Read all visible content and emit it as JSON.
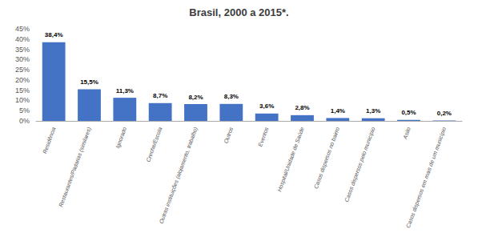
{
  "chart_data": {
    "type": "bar",
    "title": "Brasil, 2000 a 2015*.",
    "categories": [
      "Residência",
      "Restaurantes/Padarias (similares)",
      "Ignorado",
      "Creche/Escola",
      "Outras instituições (alojamento, trabalho)",
      "Outros",
      "Eventos",
      "Hospital/Unidade de Saúde",
      "Casos dispersos no bairro",
      "Casos dispersos pelo município",
      "Asilo",
      "Casos dispersos em mais de um município"
    ],
    "values": [
      38.4,
      15.5,
      11.3,
      8.7,
      8.2,
      8.3,
      3.6,
      2.8,
      1.4,
      1.3,
      0.5,
      0.2
    ],
    "value_labels": [
      "38,4%",
      "15,5%",
      "11,3%",
      "8,7%",
      "8,2%",
      "8,3%",
      "3,6%",
      "2,8%",
      "1,4%",
      "1,3%",
      "0,5%",
      "0,2%"
    ],
    "data_labels": true,
    "color": "#4472C4",
    "ylim": [
      0,
      45
    ],
    "yticks": [
      {
        "value": 0,
        "label": "0%"
      },
      {
        "value": 5,
        "label": "5%"
      },
      {
        "value": 10,
        "label": "10%"
      },
      {
        "value": 15,
        "label": "15%"
      },
      {
        "value": 20,
        "label": "20%"
      },
      {
        "value": 25,
        "label": "25%"
      },
      {
        "value": 30,
        "label": "30%"
      },
      {
        "value": 35,
        "label": "35%"
      },
      {
        "value": 40,
        "label": "40%"
      },
      {
        "value": 45,
        "label": "45%"
      }
    ],
    "grid": false
  }
}
